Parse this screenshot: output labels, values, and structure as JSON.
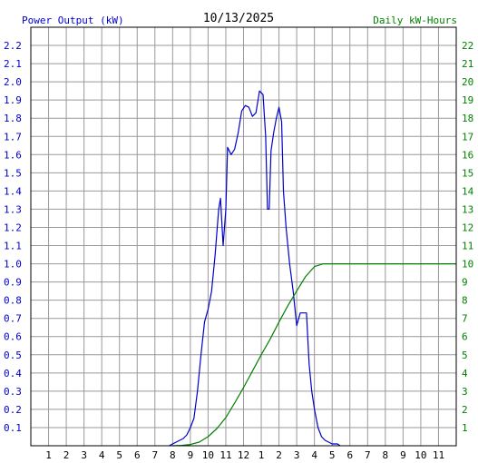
{
  "chart_data": {
    "type": "line",
    "title": "10/13/2025",
    "left_axis_label": "Power Output (kW)",
    "right_axis_label": "Daily kW-Hours",
    "grid": true,
    "x_hours": {
      "min": 0,
      "max": 24
    },
    "x_tick_labels": [
      "1",
      "2",
      "3",
      "4",
      "5",
      "6",
      "7",
      "8",
      "9",
      "10",
      "11",
      "12",
      "1",
      "2",
      "3",
      "4",
      "5",
      "6",
      "7",
      "8",
      "9",
      "10",
      "11"
    ],
    "left_ylim": [
      0,
      2.3
    ],
    "left_tick_labels": [
      "0.1",
      "0.2",
      "0.3",
      "0.4",
      "0.5",
      "0.6",
      "0.7",
      "0.8",
      "0.9",
      "1.0",
      "1.1",
      "1.2",
      "1.3",
      "1.4",
      "1.5",
      "1.6",
      "1.7",
      "1.8",
      "1.9",
      "2.0",
      "2.1",
      "2.2"
    ],
    "right_ylim": [
      0,
      23
    ],
    "right_tick_labels": [
      "1",
      "2",
      "3",
      "4",
      "5",
      "6",
      "7",
      "8",
      "9",
      "10",
      "11",
      "12",
      "13",
      "14",
      "15",
      "16",
      "17",
      "18",
      "19",
      "20",
      "21",
      "22"
    ],
    "colors": {
      "power": "#0000cc",
      "energy": "#008000",
      "grid": "#999999",
      "axis": "#000000"
    },
    "series": [
      {
        "name": "Power Output (kW)",
        "axis": "left",
        "points": [
          [
            7.8,
            0
          ],
          [
            8.0,
            0.01
          ],
          [
            8.2,
            0.02
          ],
          [
            8.4,
            0.03
          ],
          [
            8.6,
            0.04
          ],
          [
            8.8,
            0.06
          ],
          [
            9.0,
            0.1
          ],
          [
            9.2,
            0.15
          ],
          [
            9.4,
            0.3
          ],
          [
            9.6,
            0.5
          ],
          [
            9.8,
            0.68
          ],
          [
            10.0,
            0.75
          ],
          [
            10.2,
            0.85
          ],
          [
            10.4,
            1.05
          ],
          [
            10.6,
            1.3
          ],
          [
            10.7,
            1.36
          ],
          [
            10.85,
            1.1
          ],
          [
            11.0,
            1.3
          ],
          [
            11.1,
            1.64
          ],
          [
            11.3,
            1.6
          ],
          [
            11.5,
            1.63
          ],
          [
            11.7,
            1.72
          ],
          [
            11.9,
            1.84
          ],
          [
            12.1,
            1.87
          ],
          [
            12.3,
            1.86
          ],
          [
            12.5,
            1.81
          ],
          [
            12.7,
            1.83
          ],
          [
            12.9,
            1.95
          ],
          [
            13.1,
            1.93
          ],
          [
            13.25,
            1.7
          ],
          [
            13.35,
            1.3
          ],
          [
            13.45,
            1.3
          ],
          [
            13.55,
            1.62
          ],
          [
            13.7,
            1.72
          ],
          [
            13.85,
            1.8
          ],
          [
            14.0,
            1.86
          ],
          [
            14.15,
            1.78
          ],
          [
            14.25,
            1.4
          ],
          [
            14.4,
            1.2
          ],
          [
            14.6,
            1.0
          ],
          [
            14.8,
            0.85
          ],
          [
            15.0,
            0.66
          ],
          [
            15.2,
            0.73
          ],
          [
            15.55,
            0.73
          ],
          [
            15.7,
            0.45
          ],
          [
            15.85,
            0.3
          ],
          [
            16.0,
            0.2
          ],
          [
            16.2,
            0.1
          ],
          [
            16.4,
            0.05
          ],
          [
            16.6,
            0.03
          ],
          [
            16.8,
            0.02
          ],
          [
            17.0,
            0.01
          ],
          [
            17.3,
            0.01
          ],
          [
            17.45,
            0
          ]
        ]
      },
      {
        "name": "Daily kW-Hours",
        "axis": "right",
        "points": [
          [
            8.0,
            0
          ],
          [
            8.5,
            0.02
          ],
          [
            9.0,
            0.07
          ],
          [
            9.5,
            0.2
          ],
          [
            10.0,
            0.5
          ],
          [
            10.5,
            0.95
          ],
          [
            11.0,
            1.55
          ],
          [
            11.5,
            2.35
          ],
          [
            12.0,
            3.2
          ],
          [
            12.5,
            4.1
          ],
          [
            13.0,
            5.0
          ],
          [
            13.5,
            5.85
          ],
          [
            14.0,
            6.8
          ],
          [
            14.5,
            7.7
          ],
          [
            15.0,
            8.5
          ],
          [
            15.5,
            9.3
          ],
          [
            16.0,
            9.85
          ],
          [
            16.5,
            10.0
          ],
          [
            17.0,
            10.0
          ],
          [
            24.0,
            10.0
          ]
        ]
      }
    ]
  }
}
